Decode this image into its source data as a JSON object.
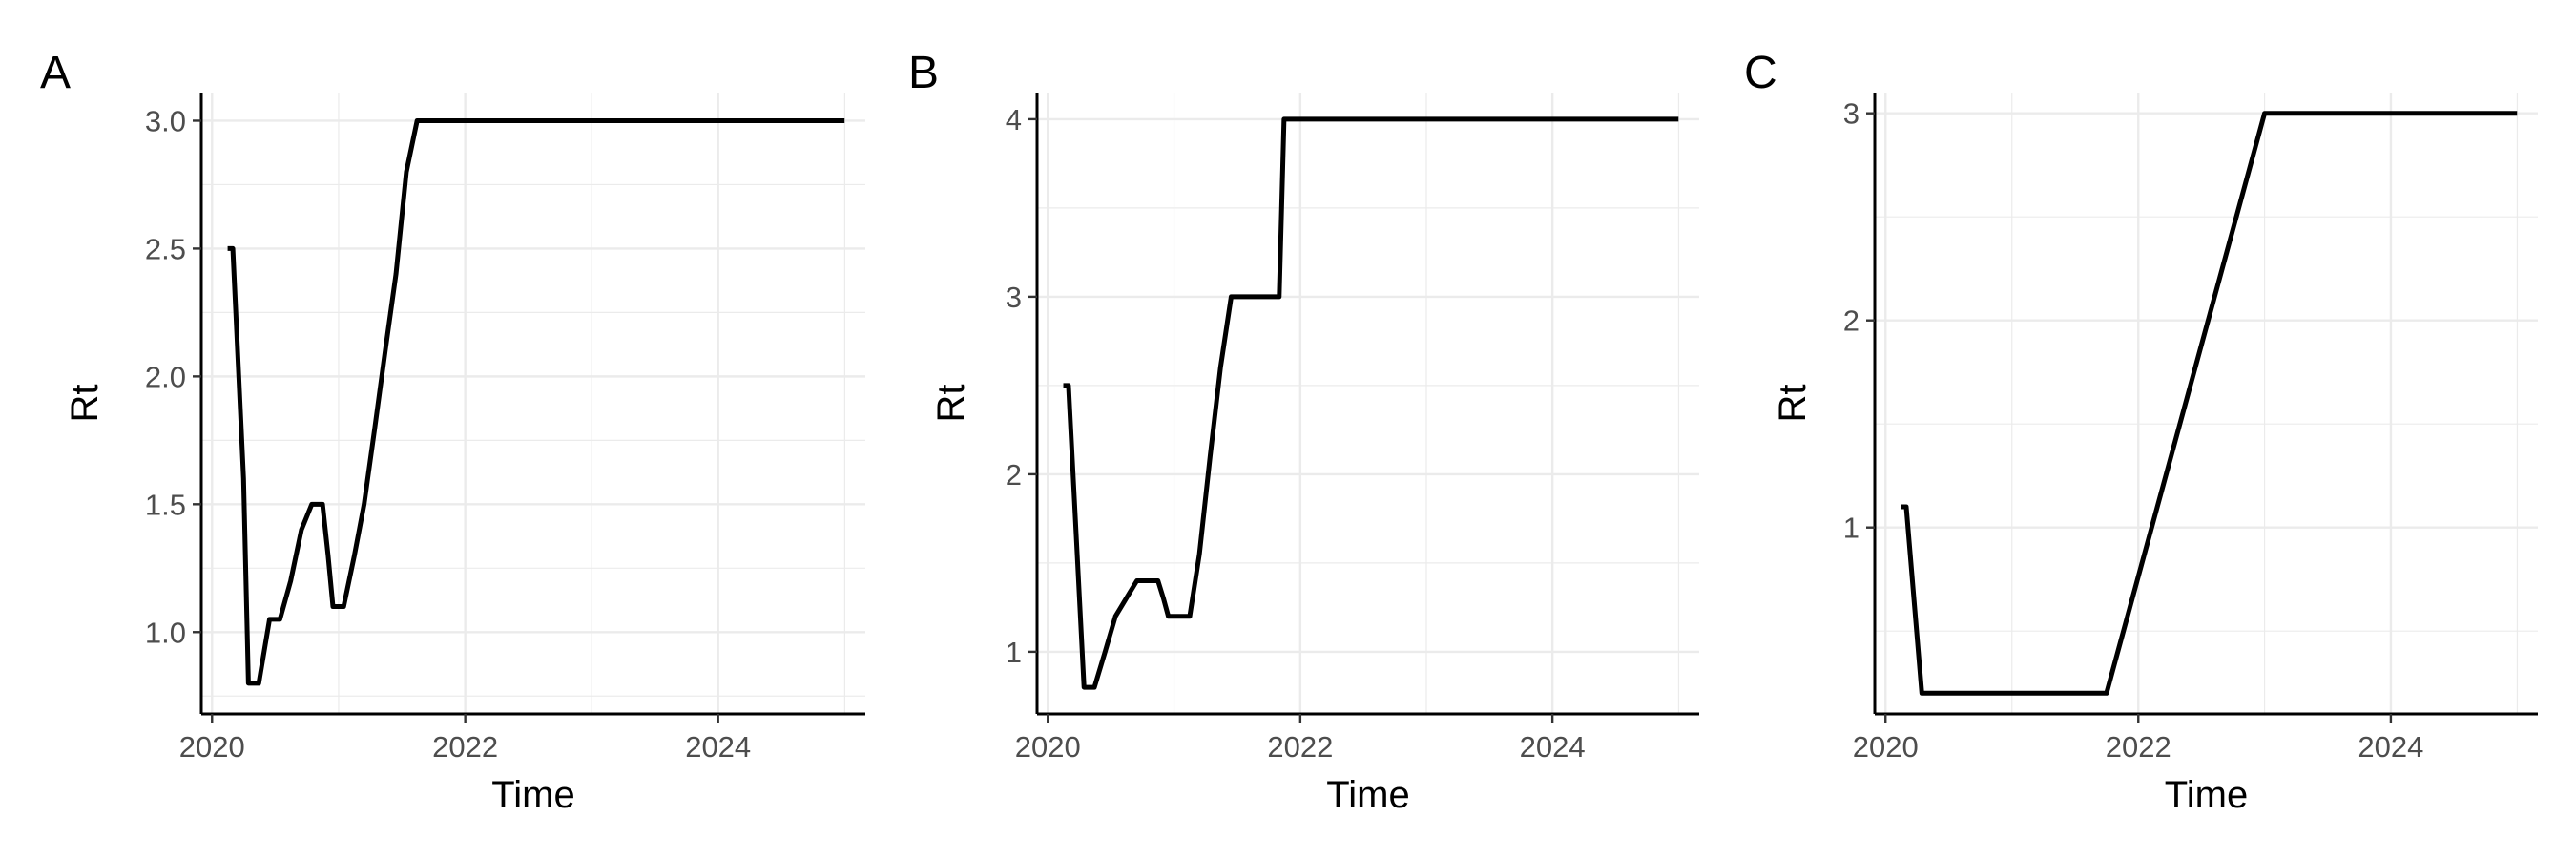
{
  "chart_data": [
    {
      "type": "line",
      "panel_label": "A",
      "xlabel": "Time",
      "ylabel": "Rt",
      "x_type": "date",
      "xlim": [
        "2019-12-01",
        "2025-03-01"
      ],
      "ylim": [
        0.68,
        3.11
      ],
      "xticks": [
        "2020",
        "2022",
        "2024"
      ],
      "yticks": [
        1.0,
        1.5,
        2.0,
        2.5,
        3.0
      ],
      "ytick_labels": [
        "1.0",
        "1.5",
        "2.0",
        "2.5",
        "3.0"
      ],
      "grid": true,
      "series": [
        {
          "color": "#000000",
          "x": [
            "2020-02-15",
            "2020-03-01",
            "2020-04-01",
            "2020-04-15",
            "2020-05-15",
            "2020-06-15",
            "2020-07-15",
            "2020-08-15",
            "2020-09-15",
            "2020-10-15",
            "2020-11-15",
            "2020-12-01",
            "2020-12-15",
            "2021-01-15",
            "2021-02-15",
            "2021-03-15",
            "2021-04-15",
            "2021-05-15",
            "2021-06-15",
            "2021-07-15",
            "2021-08-15",
            "2021-09-01",
            "2024-12-31"
          ],
          "y": [
            2.5,
            2.5,
            1.6,
            0.8,
            0.8,
            1.05,
            1.05,
            1.2,
            1.4,
            1.5,
            1.5,
            1.3,
            1.1,
            1.1,
            1.3,
            1.5,
            1.8,
            2.1,
            2.4,
            2.8,
            3.0,
            3.0,
            3.0
          ]
        }
      ]
    },
    {
      "type": "line",
      "panel_label": "B",
      "xlabel": "Time",
      "ylabel": "Rt",
      "x_type": "date",
      "xlim": [
        "2019-12-01",
        "2025-03-01"
      ],
      "ylim": [
        0.65,
        4.15
      ],
      "xticks": [
        "2020",
        "2022",
        "2024"
      ],
      "yticks": [
        1,
        2,
        3,
        4
      ],
      "ytick_labels": [
        "1",
        "2",
        "3",
        "4"
      ],
      "grid": true,
      "series": [
        {
          "color": "#000000",
          "x": [
            "2020-02-15",
            "2020-03-01",
            "2020-04-15",
            "2020-05-15",
            "2020-06-15",
            "2020-07-15",
            "2020-08-15",
            "2020-09-15",
            "2020-10-15",
            "2020-11-15",
            "2020-12-01",
            "2020-12-15",
            "2021-01-15",
            "2021-02-15",
            "2021-03-15",
            "2021-04-15",
            "2021-05-15",
            "2021-06-15",
            "2021-07-01",
            "2021-08-01",
            "2021-09-01",
            "2021-10-01",
            "2021-11-01",
            "2021-11-15",
            "2024-12-31"
          ],
          "y": [
            2.5,
            2.5,
            0.8,
            0.8,
            1.0,
            1.2,
            1.3,
            1.4,
            1.4,
            1.4,
            1.3,
            1.2,
            1.2,
            1.2,
            1.55,
            2.1,
            2.6,
            3.0,
            3.0,
            3.0,
            3.0,
            3.0,
            3.0,
            4.0,
            4.0
          ]
        }
      ]
    },
    {
      "type": "line",
      "panel_label": "C",
      "xlabel": "Time",
      "ylabel": "Rt",
      "x_type": "date",
      "xlim": [
        "2019-12-01",
        "2025-03-01"
      ],
      "ylim": [
        0.1,
        3.1
      ],
      "xticks": [
        "2020",
        "2022",
        "2024"
      ],
      "yticks": [
        1,
        2,
        3
      ],
      "ytick_labels": [
        "1",
        "2",
        "3"
      ],
      "grid": true,
      "series": [
        {
          "color": "#000000",
          "x": [
            "2020-02-15",
            "2020-03-01",
            "2020-04-15",
            "2021-10-01",
            "2023-01-01",
            "2024-12-31"
          ],
          "y": [
            1.1,
            1.1,
            0.2,
            0.2,
            3.0,
            3.0
          ]
        }
      ]
    }
  ]
}
